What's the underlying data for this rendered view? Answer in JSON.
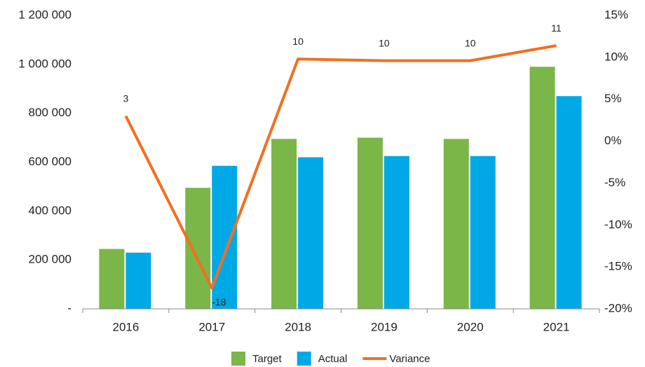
{
  "chart_data": {
    "type": "bar-line",
    "categories": [
      "2016",
      "2017",
      "2018",
      "2019",
      "2020",
      "2021"
    ],
    "series": [
      {
        "name": "Target",
        "type": "bar",
        "color": "#7ab648",
        "values": [
          245000,
          495000,
          695000,
          700000,
          695000,
          990000
        ]
      },
      {
        "name": "Actual",
        "type": "bar",
        "color": "#00a9e6",
        "values": [
          230000,
          585000,
          620000,
          625000,
          625000,
          870000
        ]
      },
      {
        "name": "Variance",
        "type": "line",
        "axis": "y2",
        "color": "#f26f21",
        "values": [
          3,
          -17.5,
          9.8,
          9.6,
          9.6,
          11.4
        ],
        "value_labels": [
          "3",
          "-18",
          "10",
          "10",
          "10",
          "11"
        ]
      }
    ],
    "ylim": [
      0,
      1200000
    ],
    "yticks": [
      {
        "value": 0,
        "label": "-"
      },
      {
        "value": 200000,
        "label": "200 000"
      },
      {
        "value": 400000,
        "label": "400 000"
      },
      {
        "value": 600000,
        "label": "600 000"
      },
      {
        "value": 800000,
        "label": "800 000"
      },
      {
        "value": 1000000,
        "label": "1 000 000"
      },
      {
        "value": 1200000,
        "label": "1 200 000"
      }
    ],
    "y2lim": [
      -20,
      15
    ],
    "y2ticks": [
      {
        "value": -20,
        "label": "-20%"
      },
      {
        "value": -15,
        "label": "-15%"
      },
      {
        "value": -10,
        "label": "-10%"
      },
      {
        "value": -5,
        "label": "-5%"
      },
      {
        "value": 0,
        "label": "0%"
      },
      {
        "value": 5,
        "label": "5%"
      },
      {
        "value": 10,
        "label": "10%"
      },
      {
        "value": 15,
        "label": "15%"
      }
    ],
    "legend": "bottom"
  }
}
